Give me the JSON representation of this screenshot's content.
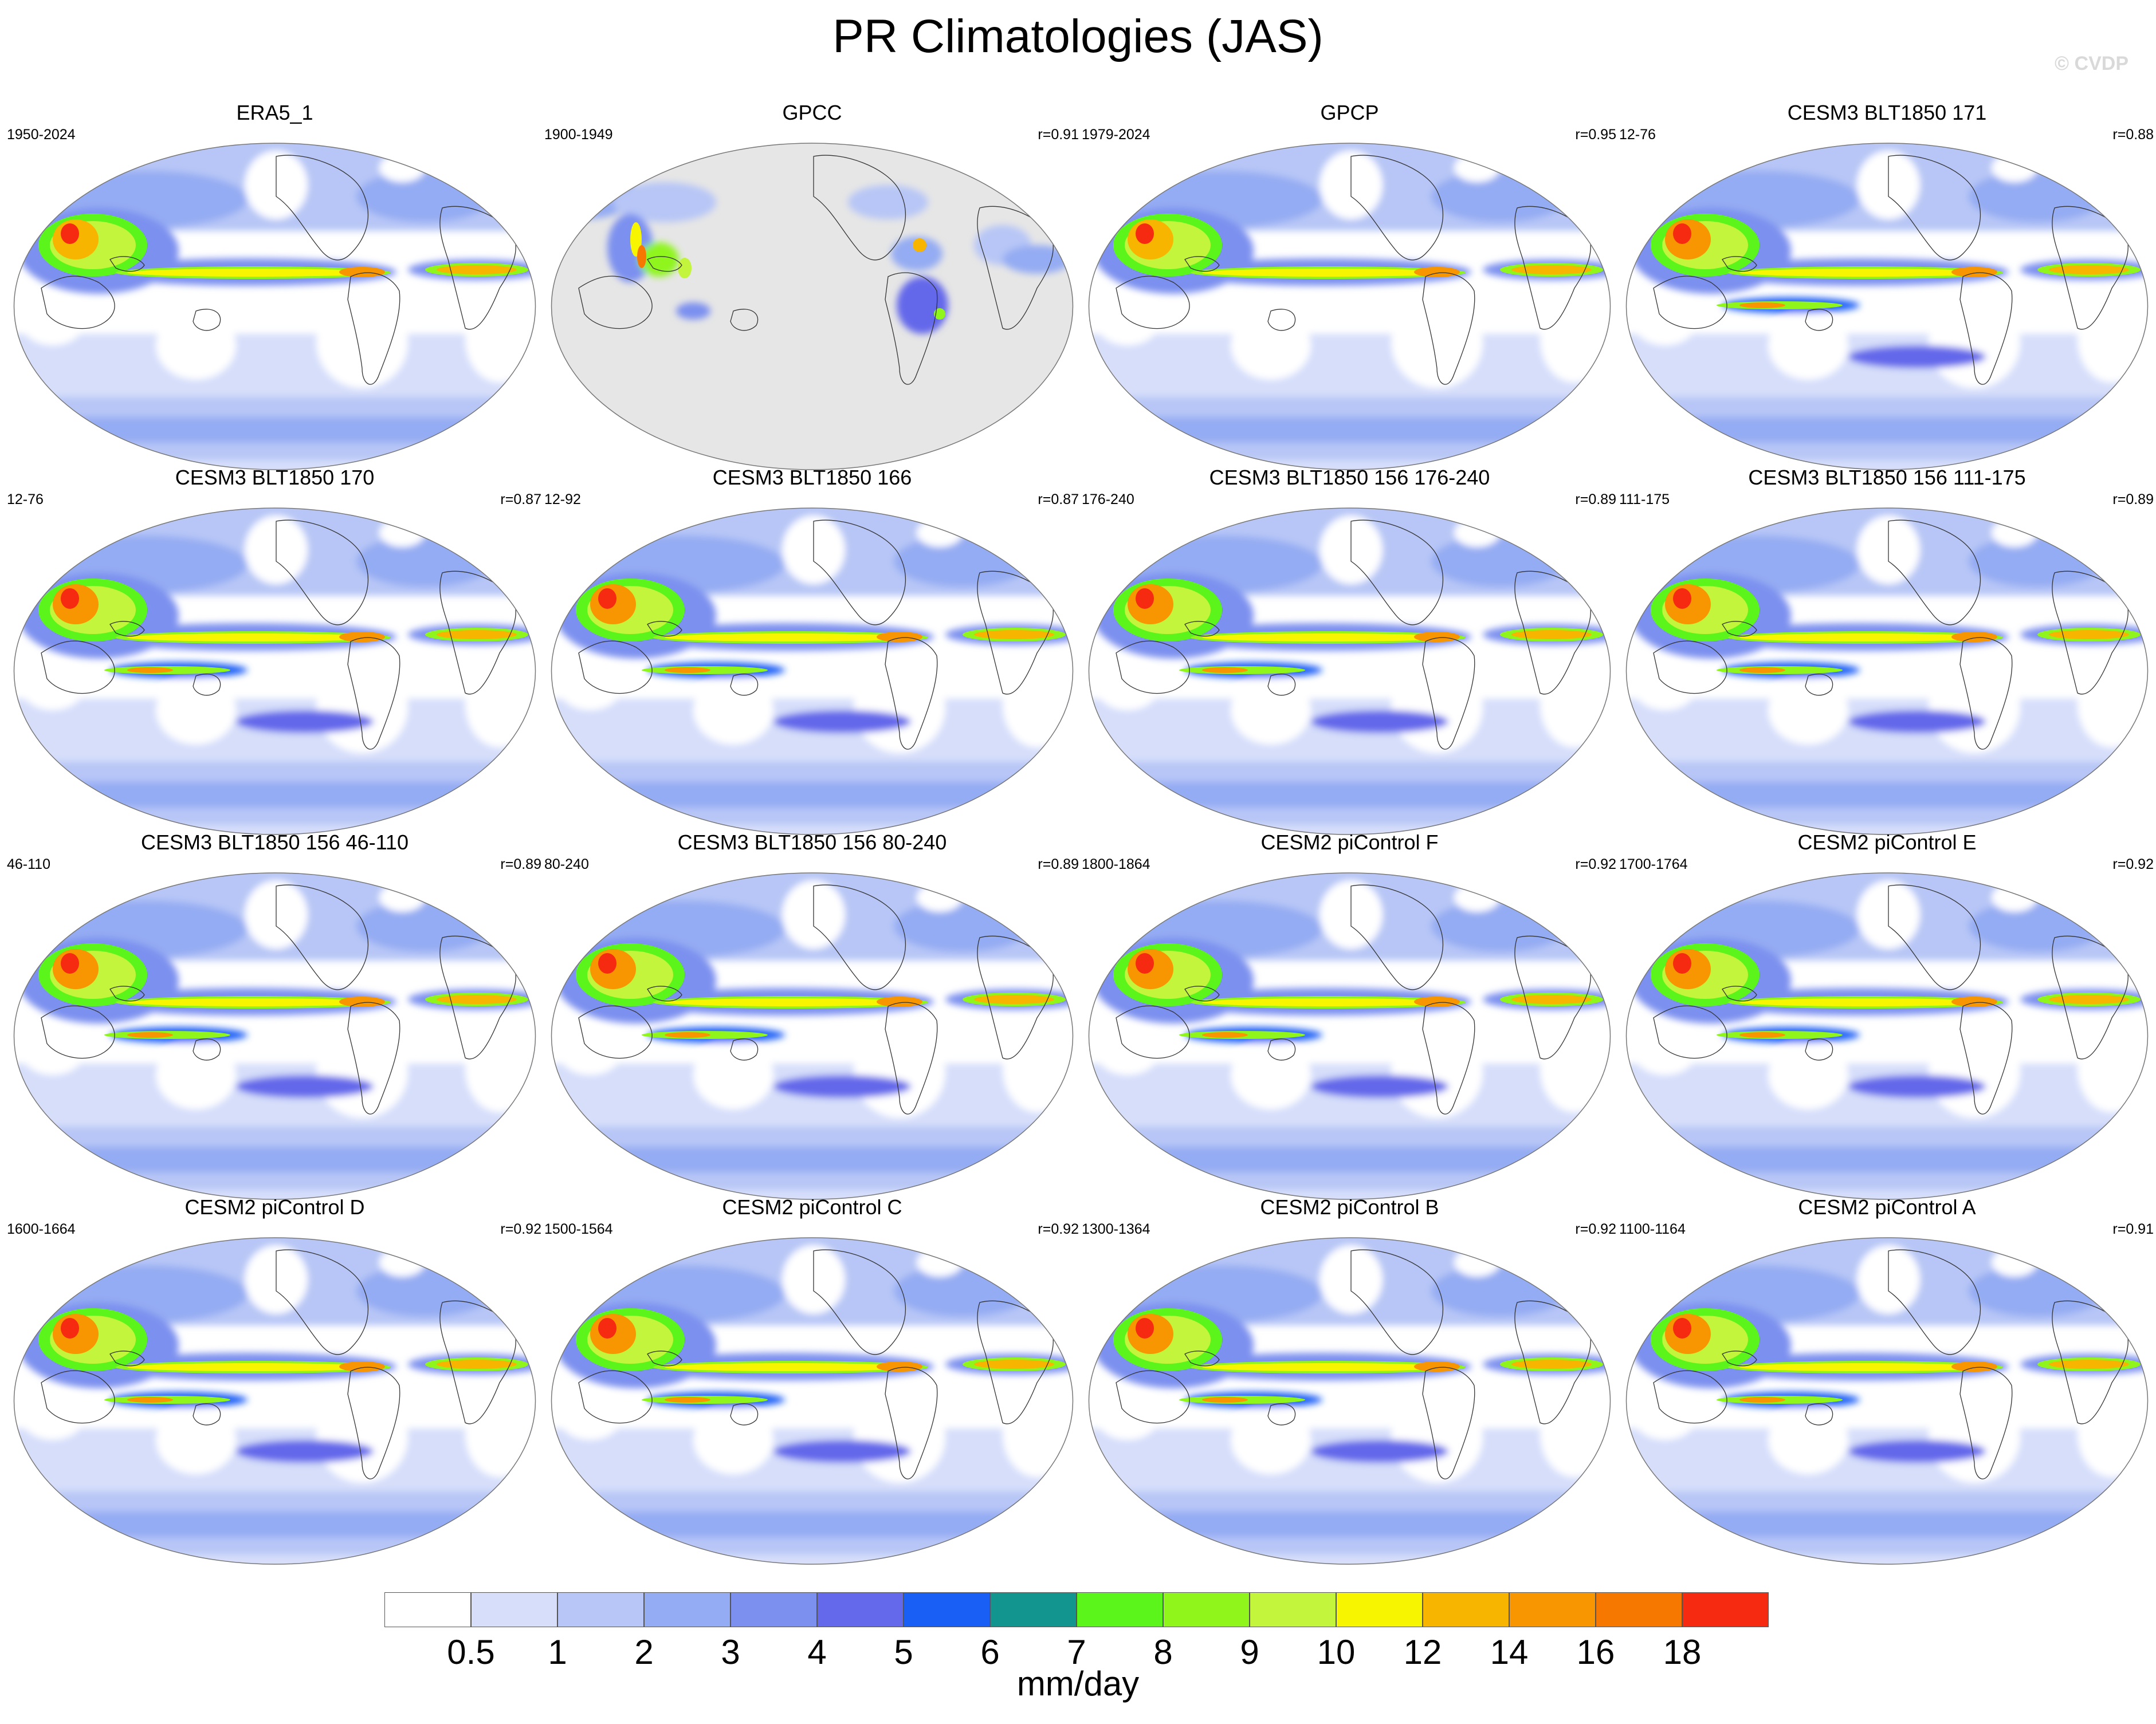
{
  "title": "PR Climatologies (JAS)",
  "watermark": "© CVDP",
  "panels": [
    {
      "title": "ERA5_1",
      "years": "1950-2024",
      "r": "",
      "style": "obs"
    },
    {
      "title": "GPCC",
      "years": "1900-1949",
      "r": "r=0.91",
      "style": "land"
    },
    {
      "title": "GPCP",
      "years": "1979-2024",
      "r": "r=0.95",
      "style": "obs"
    },
    {
      "title": "CESM3 BLT1850 171",
      "years": "12-76",
      "r": "r=0.88",
      "style": "cesm3"
    },
    {
      "title": "CESM3 BLT1850 170",
      "years": "12-76",
      "r": "r=0.87",
      "style": "cesm3"
    },
    {
      "title": "CESM3 BLT1850 166",
      "years": "12-92",
      "r": "r=0.87",
      "style": "cesm3"
    },
    {
      "title": "CESM3 BLT1850 156 176-240",
      "years": "176-240",
      "r": "r=0.89",
      "style": "cesm3"
    },
    {
      "title": "CESM3 BLT1850 156 111-175",
      "years": "111-175",
      "r": "r=0.89",
      "style": "cesm3"
    },
    {
      "title": "CESM3 BLT1850 156 46-110",
      "years": "46-110",
      "r": "r=0.89",
      "style": "cesm3"
    },
    {
      "title": "CESM3 BLT1850 156 80-240",
      "years": "80-240",
      "r": "r=0.89",
      "style": "cesm3"
    },
    {
      "title": "CESM2 piControl F",
      "years": "1800-1864",
      "r": "r=0.92",
      "style": "cesm2"
    },
    {
      "title": "CESM2 piControl E",
      "years": "1700-1764",
      "r": "r=0.92",
      "style": "cesm2"
    },
    {
      "title": "CESM2 piControl D",
      "years": "1600-1664",
      "r": "r=0.92",
      "style": "cesm2"
    },
    {
      "title": "CESM2 piControl C",
      "years": "1500-1564",
      "r": "r=0.92",
      "style": "cesm2"
    },
    {
      "title": "CESM2 piControl B",
      "years": "1300-1364",
      "r": "r=0.92",
      "style": "cesm2"
    },
    {
      "title": "CESM2 piControl A",
      "years": "1100-1164",
      "r": "r=0.91",
      "style": "cesm2"
    }
  ],
  "colorbar": {
    "labels": [
      "0.5",
      "1",
      "2",
      "3",
      "4",
      "5",
      "6",
      "7",
      "8",
      "9",
      "10",
      "12",
      "14",
      "16",
      "18"
    ],
    "colors": [
      "#ffffff",
      "#d6defa",
      "#b7c6f6",
      "#94acf3",
      "#7b90ef",
      "#6468ea",
      "#1a5ff5",
      "#12958f",
      "#5bf51b",
      "#8ff51a",
      "#c2f53b",
      "#f7f500",
      "#f7b500",
      "#f79600",
      "#f77800",
      "#f52a10"
    ],
    "units": "mm/day"
  }
}
